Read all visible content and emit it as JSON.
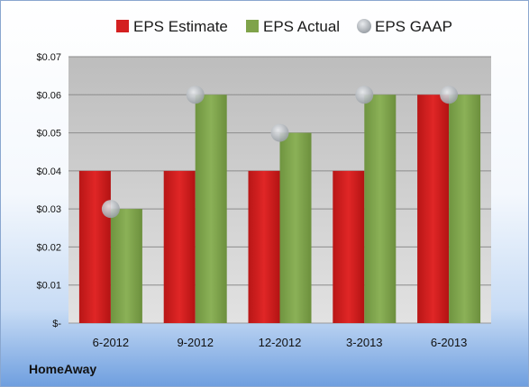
{
  "company": "HomeAway",
  "chart_data": {
    "type": "bar",
    "categories": [
      "6-2012",
      "9-2012",
      "12-2012",
      "3-2013",
      "6-2013"
    ],
    "series": [
      {
        "name": "EPS Estimate",
        "kind": "bar",
        "color": "#d42020",
        "values": [
          0.04,
          0.04,
          0.04,
          0.04,
          0.06
        ]
      },
      {
        "name": "EPS Actual",
        "kind": "bar",
        "color": "#7fa34a",
        "values": [
          0.03,
          0.06,
          0.05,
          0.06,
          0.06
        ]
      },
      {
        "name": "EPS GAAP",
        "kind": "marker",
        "color": "#bfc3c8",
        "values": [
          0.03,
          0.06,
          0.05,
          0.06,
          0.06
        ]
      }
    ],
    "yticks": [
      "$-",
      "$0.01",
      "$0.02",
      "$0.03",
      "$0.04",
      "$0.05",
      "$0.06",
      "$0.07"
    ],
    "ylim": [
      0,
      0.07
    ],
    "grid": true,
    "legend_position": "top"
  }
}
